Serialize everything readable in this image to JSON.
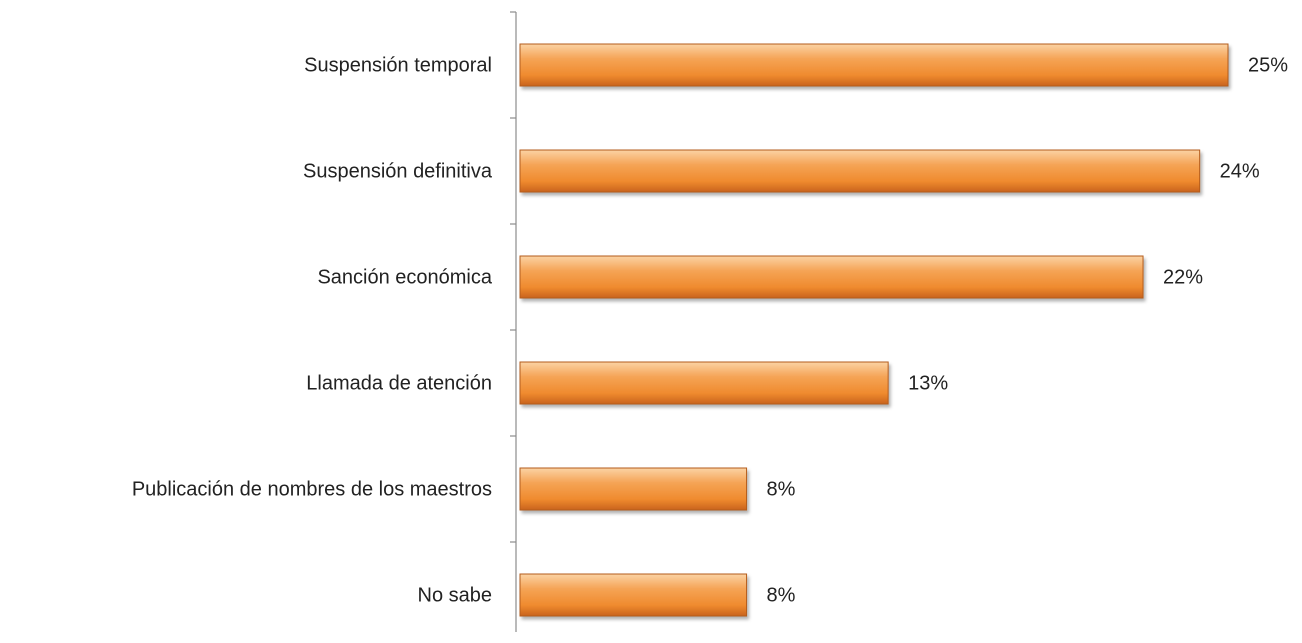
{
  "chart_data": {
    "type": "bar",
    "orientation": "horizontal",
    "categories": [
      "Suspensión temporal",
      "Suspensión definitiva",
      "Sanción económica",
      "Llamada de atención",
      "Publicación de nombres de los maestros",
      "No sabe"
    ],
    "values": [
      25,
      24,
      22,
      13,
      8,
      8
    ],
    "value_labels": [
      "25%",
      "24%",
      "22%",
      "13%",
      "8%",
      "8%"
    ],
    "color": "#f08a2c"
  }
}
